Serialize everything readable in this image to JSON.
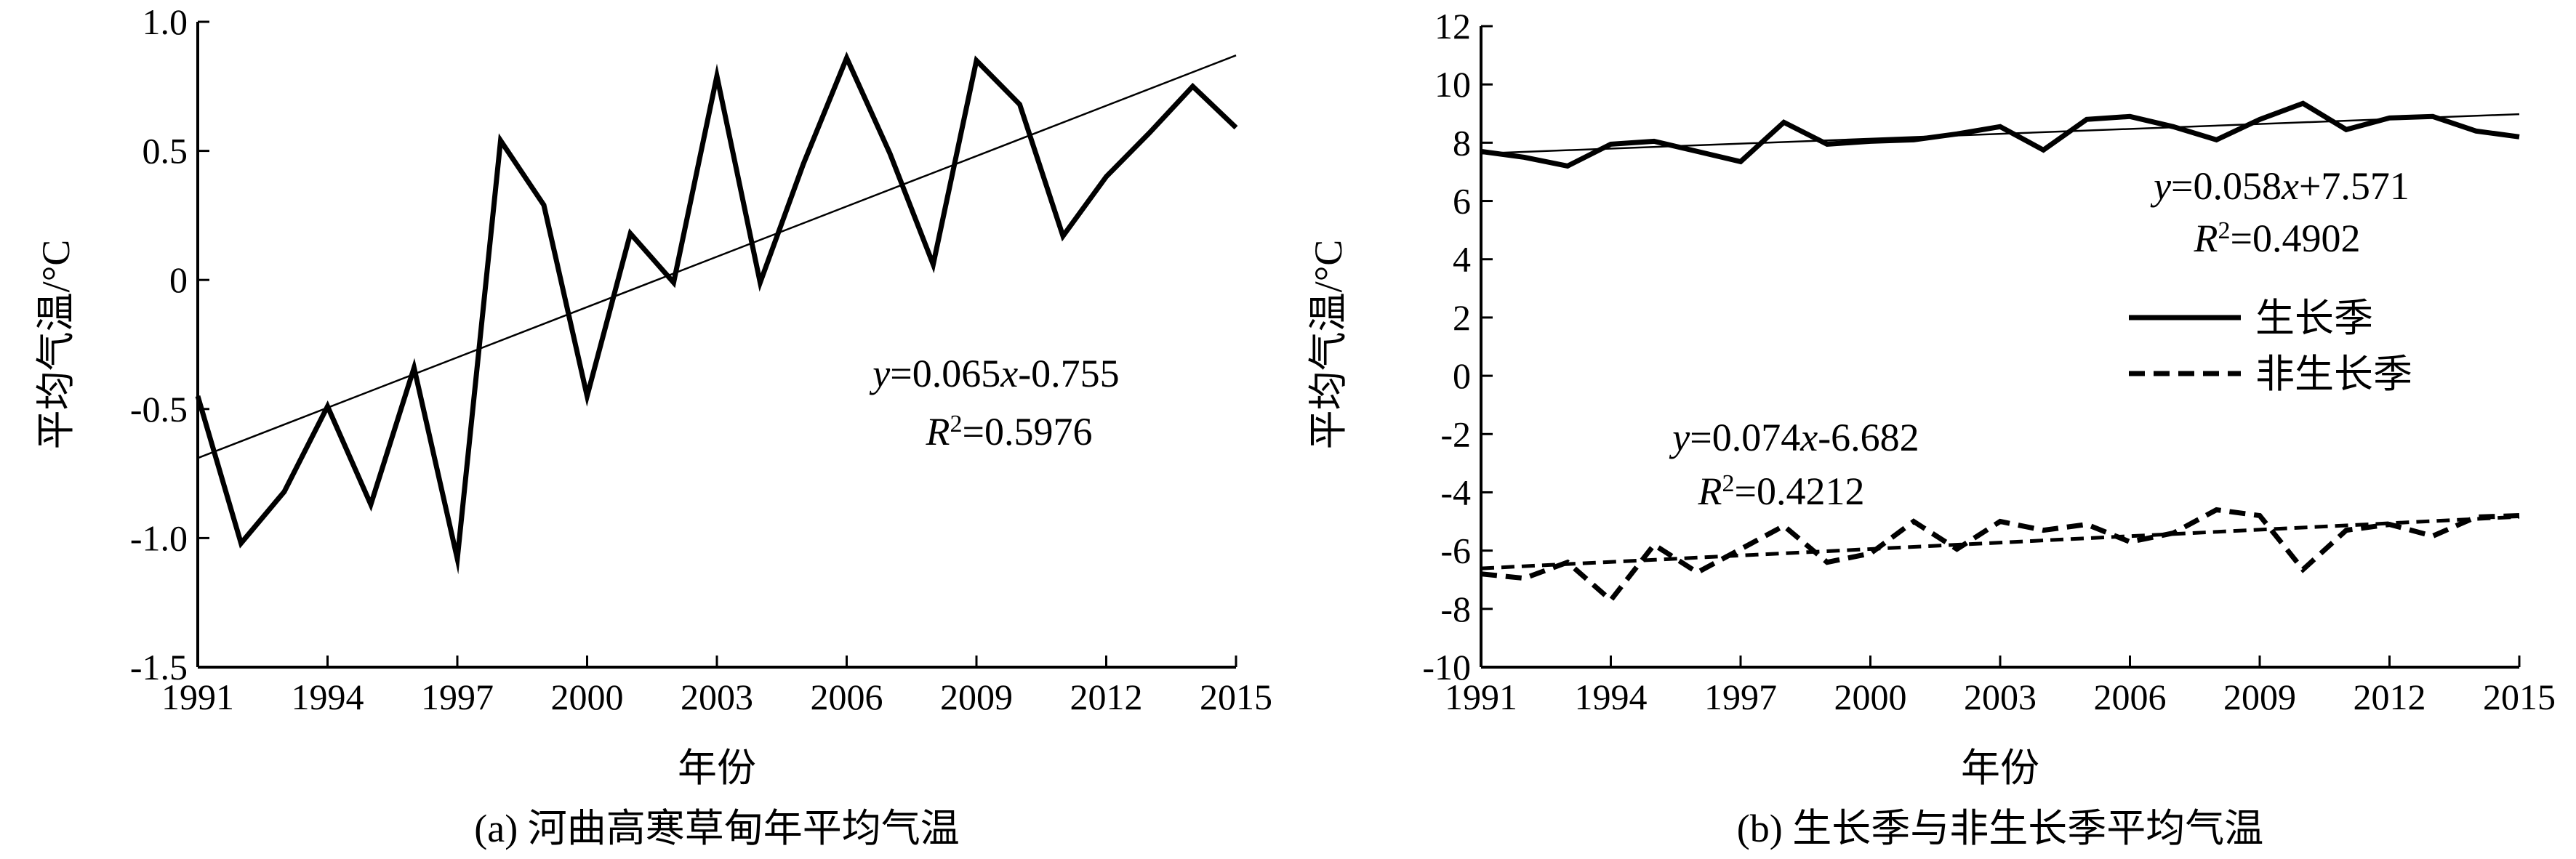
{
  "chart_data": [
    {
      "type": "line",
      "caption": "(a) 河曲高寒草甸年平均气温",
      "xlabel": "年份",
      "ylabel": "平均气温/°C",
      "xlim": [
        1991,
        2015
      ],
      "ylim": [
        -1.5,
        1.0
      ],
      "xticks": [
        1991,
        1994,
        1997,
        2000,
        2003,
        2006,
        2009,
        2012,
        2015
      ],
      "xtick_labels": [
        "1991",
        "1994",
        "1997",
        "2000",
        "2003",
        "2006",
        "2009",
        "2012",
        "2015"
      ],
      "yticks": [
        -1.5,
        -1.0,
        -0.5,
        0,
        0.5,
        1.0
      ],
      "ytick_labels": [
        "-1.5",
        "-1.0",
        "-0.5",
        "0",
        "0.5",
        "1.0"
      ],
      "grid": false,
      "x": [
        1991,
        1992,
        1993,
        1994,
        1995,
        1996,
        1997,
        1998,
        1999,
        2000,
        2001,
        2002,
        2003,
        2004,
        2005,
        2006,
        2007,
        2008,
        2009,
        2010,
        2011,
        2012,
        2013,
        2014,
        2015
      ],
      "series": [
        {
          "style": "solid-thick",
          "values": [
            -0.45,
            -1.02,
            -0.82,
            -0.49,
            -0.87,
            -0.34,
            -1.08,
            0.54,
            0.29,
            -0.45,
            0.18,
            -0.01,
            0.79,
            -0.01,
            0.45,
            0.86,
            0.49,
            0.06,
            0.85,
            0.68,
            0.17,
            0.4,
            0.57,
            0.75,
            0.59
          ]
        }
      ],
      "trendlines": [
        {
          "style": "solid-thin",
          "x": [
            1991,
            2015
          ],
          "y": [
            -0.69,
            0.87
          ]
        }
      ],
      "annotations": [
        {
          "italic": "y",
          "text": "=0.065",
          "italic2": "x",
          "text2": "-0.755"
        },
        {
          "italic": "R",
          "sup": "2",
          "text": "=0.5976"
        }
      ]
    },
    {
      "type": "line",
      "caption": "(b) 生长季与非生长季平均气温",
      "xlabel": "年份",
      "ylabel": "平均气温/°C",
      "xlim": [
        1991,
        2015
      ],
      "ylim": [
        -10,
        12
      ],
      "xticks": [
        1991,
        1994,
        1997,
        2000,
        2003,
        2006,
        2009,
        2012,
        2015
      ],
      "xtick_labels": [
        "1991",
        "1994",
        "1997",
        "2000",
        "2003",
        "2006",
        "2009",
        "2012",
        "2015"
      ],
      "yticks": [
        -10,
        -8,
        -6,
        -4,
        -2,
        0,
        2,
        4,
        6,
        8,
        10,
        12
      ],
      "ytick_labels": [
        "-10",
        "-8",
        "-6",
        "-4",
        "-2",
        "0",
        "2",
        "4",
        "6",
        "8",
        "10",
        "12"
      ],
      "grid": false,
      "legend_position": "right",
      "x": [
        1991,
        1992,
        1993,
        1994,
        1995,
        1996,
        1997,
        1998,
        1999,
        2000,
        2001,
        2002,
        2003,
        2004,
        2005,
        2006,
        2007,
        2008,
        2009,
        2010,
        2011,
        2012,
        2013,
        2014,
        2015
      ],
      "series": [
        {
          "name": "生长季",
          "style": "solid-thick",
          "values": [
            7.7,
            7.5,
            7.2,
            7.95,
            8.05,
            7.7,
            7.35,
            8.7,
            7.95,
            8.05,
            8.1,
            8.3,
            8.55,
            7.75,
            8.8,
            8.9,
            8.55,
            8.1,
            8.8,
            9.35,
            8.45,
            8.85,
            8.9,
            8.4,
            8.2
          ]
        },
        {
          "name": "非生长季",
          "style": "dashed-thick",
          "values": [
            -6.8,
            -6.95,
            -6.4,
            -7.7,
            -5.8,
            -6.75,
            -5.95,
            -5.15,
            -6.4,
            -6.1,
            -5.0,
            -5.95,
            -5.0,
            -5.3,
            -5.1,
            -5.7,
            -5.4,
            -4.6,
            -4.8,
            -6.65,
            -5.3,
            -5.1,
            -5.5,
            -4.85,
            -4.8
          ]
        }
      ],
      "trendlines": [
        {
          "style": "solid-thin",
          "x": [
            1991,
            2015
          ],
          "y": [
            7.63,
            8.98
          ]
        },
        {
          "style": "dashed-thin",
          "x": [
            1991,
            2015
          ],
          "y": [
            -6.61,
            -4.84
          ]
        }
      ],
      "annotations": [
        {
          "italic": "y",
          "text": "=0.058",
          "italic2": "x",
          "text2": "+7.571"
        },
        {
          "italic": "R",
          "sup": "2",
          "text": "=0.4902"
        },
        {
          "italic": "y",
          "text": "=0.074",
          "italic2": "x",
          "text2": "-6.682"
        },
        {
          "italic": "R",
          "sup": "2",
          "text": "=0.4212"
        }
      ]
    }
  ]
}
